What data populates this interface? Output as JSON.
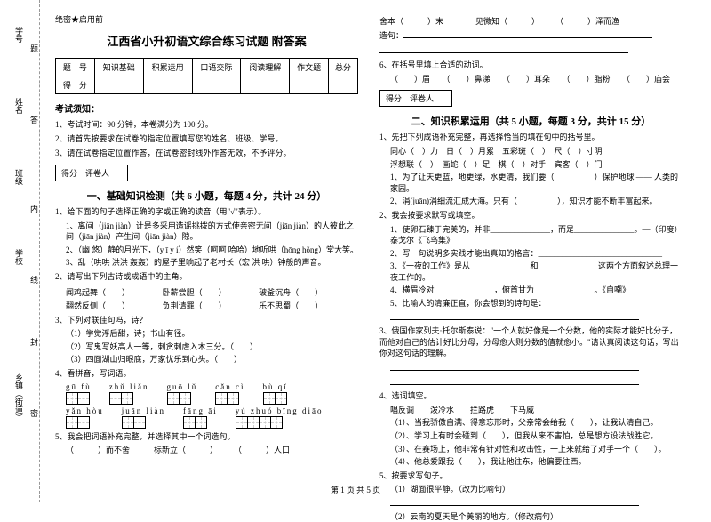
{
  "binding": {
    "l1": "学号",
    "l2": "姓名",
    "l3": "班级",
    "l4": "学校",
    "l5": "乡镇（街道）",
    "m1": "题",
    "m2": "答",
    "m3": "内",
    "m4": "线",
    "m5": "封",
    "m6": "密"
  },
  "confidential": "绝密★启用前",
  "title": "江西省小升初语文综合练习试题 附答案",
  "score_table": {
    "r1": [
      "题　号",
      "知识基础",
      "积累运用",
      "口语交际",
      "阅读理解",
      "作文题",
      "总分"
    ],
    "r2": [
      "得　分",
      "",
      "",
      "",
      "",
      "",
      ""
    ]
  },
  "notice_title": "考试须知：",
  "notices": [
    "1、考试时间：90 分钟，本卷满分为 100 分。",
    "2、请首先按要求在试卷的指定位置填写您的姓名、班级、学号。",
    "3、请在试卷指定位置作答，在试卷密封线外作答无效，不予评分。"
  ],
  "scorebox": "得分　评卷人",
  "section1": "一、基础知识检测（共 6 小题，每题 4 分，共计 24 分）",
  "q1": "1、给下面的句子选择正确的字或正确的读音（用\"√\"表示）。",
  "q1_1": "1、离间（jiān jiàn）计是多采用造谣挑拨的方式使亲密无间（jiān jiàn）的人彼此之间（jiān jiàn）产生间（jiān jiàn）隙。",
  "q1_2": "2、（幽 悠）静的月光下，（y ī y í）然笑（呵呵 哈哈）地听哄（hōng hǒng）堂大笑。",
  "q1_3": "3、乱（哄哄 洪洪 轰轰）的屋子里响起了老村长（宏 洪 哄）钟般的声音。",
  "q2": "2、请写出下列古诗或成语中的主角。",
  "q2_opts": [
    "闻鸡起舞（　　）",
    "卧薪尝胆（　　）",
    "破釜沉舟（　　）",
    "翻然反侧（　　）",
    "负荆请罪（　　）",
    "乐不思蜀（　　）"
  ],
  "q3": "3、下列对联佳句吗，诗？",
  "q3_1": "（1）学觉浮后甜，诗；书山有径。",
  "q3_2": "（2）写鬼写妖高人一等，刺贪刺虐入木三分。（　　）",
  "q3_3": "（3）四面湖山归眼底，万家忧乐到心头。（　　）",
  "q4": "4、看拼音，写词语。",
  "grid1": [
    {
      "py": "gū fù",
      "n": 2
    },
    {
      "py": "zhǔ liǎn",
      "n": 2
    },
    {
      "py": "guō lǔ",
      "n": 2
    },
    {
      "py": "cǎn cì",
      "n": 2
    },
    {
      "py": "bù qǐ",
      "n": 2
    }
  ],
  "grid2": [
    {
      "py": "yǎn hòu",
      "n": 2
    },
    {
      "py": "juān liàn",
      "n": 2
    },
    {
      "py": "fāng āi",
      "n": 2
    },
    {
      "py": "yú zhuó bīng diāo",
      "n": 4
    }
  ],
  "q5": "5、我会把词语补充完整，并选择其中一个词造句。",
  "q5_line": "（　　　）而不舍　　　标新立（　　　）　　　（　　　）人口",
  "r_top": {
    "l1": "舍本（　　　）末　　　　见微知（　　　）　　　（　　　）泽而渔",
    "l2_label": "造句：",
    "l2_line": ""
  },
  "q6": "6、在括号里填上合适的动词。",
  "q6_line": "（　　）眉　　（　　）鼻涕　　（　　）耳朵　　（　　）脂粉　　（　　）庙会",
  "section2": "二、知识积累运用（共 5 小题，每题 3 分，共计 15 分）",
  "b1": "1、先把下列成语补充完整，再选择恰当的填在句中的括号里。",
  "b1_1": "同心（　）力　日（　）月累　五彩斑（　）　尺（　）寸阴",
  "b1_2": "浮想联（　）　画蛇（　）足　棋（　）对手　宾客（　）门",
  "b1_3": "1、为了让天更蓝，地更绿，水更清，我们要（　　　　　）保护地球 —— 人类的家园。",
  "b1_4": "2、涓(juān)涓细流汇成大海。只有（　　　　　），知识才能不断丰富起来。",
  "b2": "2、我会按要求默写或填空。",
  "b2_1": "1、使卵石臻于完美的，并非_______________，而是_______________。—（印度）泰戈尔《飞鸟集》",
  "b2_2": "2、写一句说明多实践才能出真知的格言：_______________________________",
  "b2_3": "3、《一夜的工作》是从_______________和_______________这两个方面叙述总理一夜工作的。",
  "b2_4": "4、横眉冷对_______________，俯首甘为_______________。《自嘲》",
  "b2_5": "5、比喻人的清廉正直，你会想到的诗句是：",
  "b2_5_line": "",
  "b3": "3、俄国作家列夫·托尔斯泰说：\"一个人就好像是一个分数，他的实际才能好比分子，而他对自己的估计好比分母，分母愈大则分数的值就愈小。\"请认真阅读这句话，写出你对这句话的理解。",
  "b3_lines": [
    "",
    ""
  ],
  "b4": "4、选词填空。",
  "b4_opts": "唱反调　　泼冷水　　拦路虎　　下马威",
  "b4_1": "（1）、当我骄傲自满、得意忘形时，父亲常会给我（　　），让我认清自己。",
  "b4_2": "（2）、学习上有时会碰到（　　），但我从来不害怕，总是想方设法战胜它。",
  "b4_3": "（3）、在赛场上，他非常有针对性和攻击性，一上来就给了对手一个（　　）。",
  "b4_4": "（4）、他总爱跟我（　　），我让他往东，他偏要往西。",
  "b5": "5、按要求写句子。",
  "b5_1": "（1）湖面很平静。（改为比喻句）",
  "b5_1_line": "",
  "b5_2": "（2）云南的夏天是个美丽的地方。（修改病句）",
  "footer": "第 1 页 共 5 页"
}
